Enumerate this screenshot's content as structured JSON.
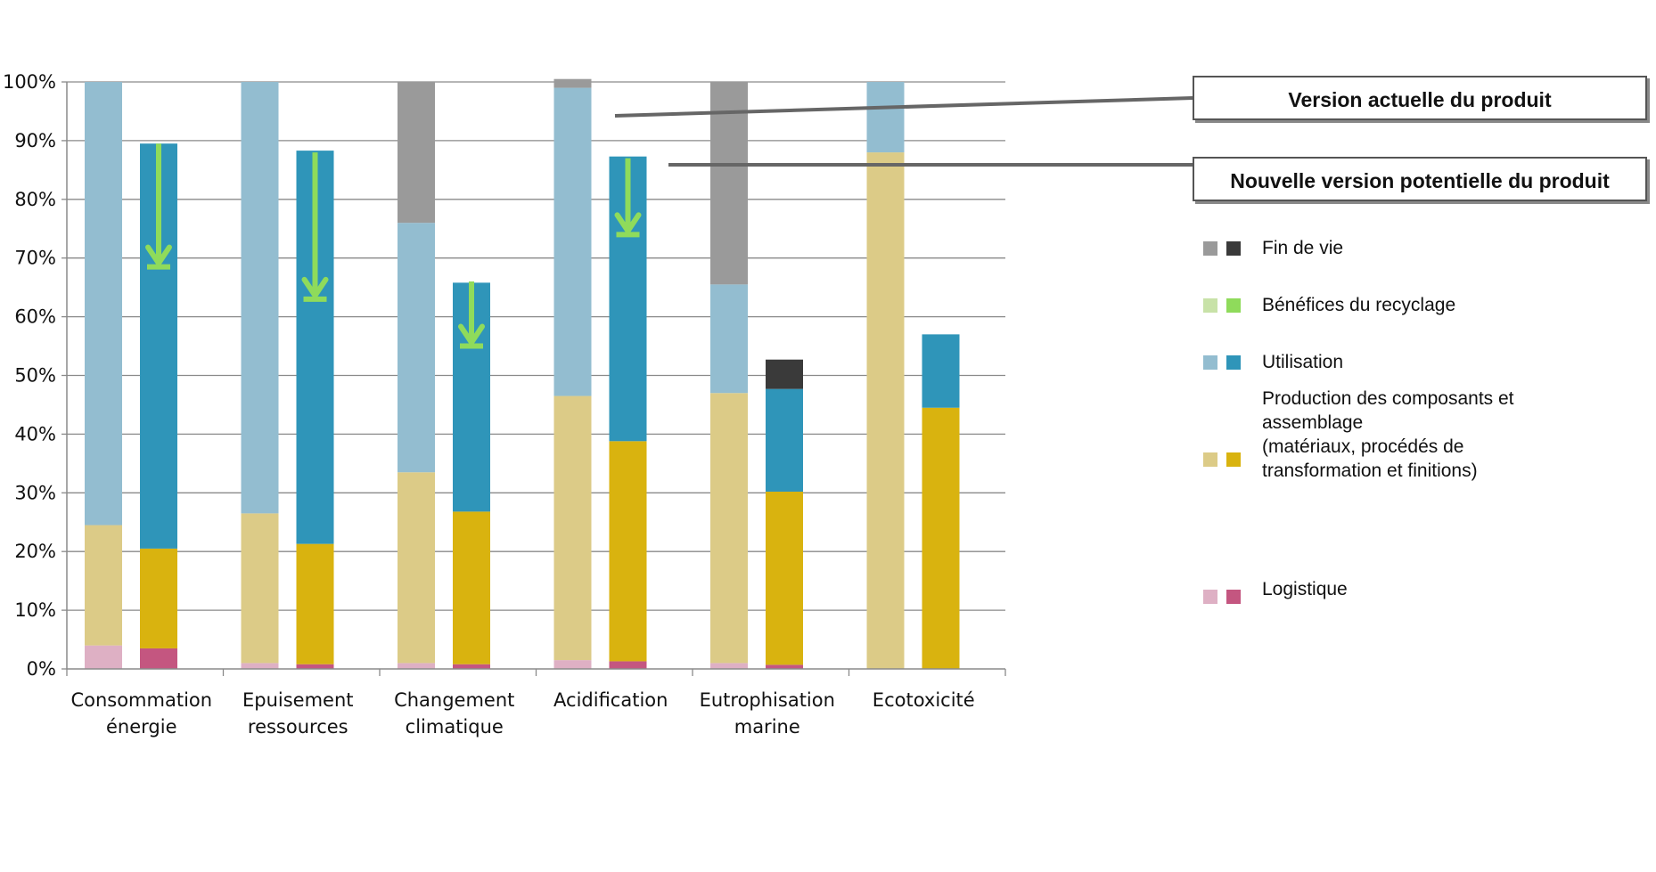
{
  "chart_data": {
    "type": "bar",
    "stacked": true,
    "categories": [
      [
        "Consommation",
        "énergie"
      ],
      [
        "Epuisement",
        "ressources"
      ],
      [
        "Changement",
        "climatique"
      ],
      [
        "Acidification"
      ],
      [
        "Eutrophisation",
        "marine"
      ],
      [
        "Ecotoxicité"
      ]
    ],
    "ylim": [
      0,
      100
    ],
    "yticks": [
      "0%",
      "10%",
      "20%",
      "30%",
      "40%",
      "50%",
      "60%",
      "70%",
      "80%",
      "90%",
      "100%"
    ],
    "grid": true,
    "legend_position": "right",
    "series": [
      {
        "name": "Logistique",
        "colors": [
          "#deb0c4",
          "#c45680"
        ],
        "current": [
          4,
          1,
          1,
          1.5,
          1,
          0
        ],
        "new": [
          3.5,
          0.8,
          0.8,
          1.3,
          0.7,
          0
        ]
      },
      {
        "name": "Production des composants et assemblage (matériaux, procédés de transformation et finitions)",
        "colors": [
          "#dccb87",
          "#d9b30f"
        ],
        "current": [
          20.5,
          25.5,
          32.5,
          45,
          46,
          88
        ],
        "new": [
          17,
          20.5,
          26,
          37.5,
          29.5,
          44.5
        ]
      },
      {
        "name": "Utilisation",
        "colors": [
          "#93bdd0",
          "#2f95b9"
        ],
        "current": [
          75.5,
          73.5,
          42.5,
          52.5,
          18.5,
          12
        ],
        "new": [
          69,
          67,
          39,
          48.5,
          17.5,
          12.5
        ]
      },
      {
        "name": "Bénéfices du recyclage",
        "colors": [
          "#c8e2a8",
          "#8fdb5b"
        ],
        "current": [
          0,
          0,
          0,
          0,
          0,
          0
        ],
        "new": [
          0,
          0,
          0,
          0,
          0,
          0
        ]
      },
      {
        "name": "Fin de vie",
        "colors": [
          "#9a9a9a",
          "#3a3a3a"
        ],
        "current": [
          0,
          0,
          24,
          1.5,
          34.5,
          0
        ],
        "new": [
          0,
          0,
          0,
          0,
          5,
          0
        ]
      }
    ],
    "reduction_arrows": [
      {
        "category": 0,
        "from": 89.5,
        "to": 68.5
      },
      {
        "category": 1,
        "from": 88,
        "to": 63
      },
      {
        "category": 2,
        "from": 66,
        "to": 55
      },
      {
        "category": 3,
        "from": 87,
        "to": 74
      }
    ]
  },
  "callouts": {
    "current_version": "Version actuelle du produit",
    "new_version": "Nouvelle version potentielle du produit"
  },
  "legend": {
    "fin_de_vie": "Fin de vie",
    "benefices": "Bénéfices du recyclage",
    "utilisation": "Utilisation",
    "production": [
      "Production des composants et",
      "assemblage",
      "(matériaux, procédés de",
      "transformation et finitions)"
    ],
    "logistique": "Logistique"
  }
}
